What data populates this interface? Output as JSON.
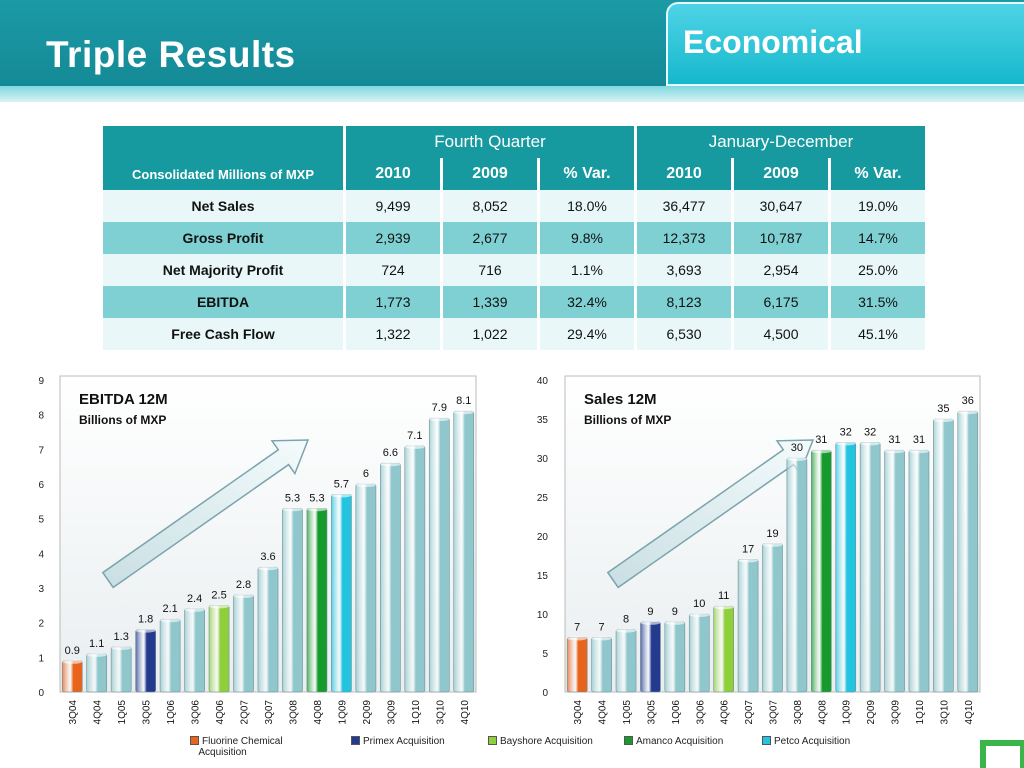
{
  "header": {
    "title": "Triple Results",
    "tab": "Economical"
  },
  "table": {
    "corner_label": "Consolidated Millions of MXP",
    "groups": [
      "Fourth Quarter",
      "January-December"
    ],
    "sub_headers": [
      "2010",
      "2009",
      "% Var.",
      "2010",
      "2009",
      "% Var."
    ],
    "rows": [
      {
        "label": "Net Sales",
        "values": [
          "9,499",
          "8,052",
          "18.0%",
          "36,477",
          "30,647",
          "19.0%"
        ]
      },
      {
        "label": "Gross Profit",
        "values": [
          "2,939",
          "2,677",
          "9.8%",
          "12,373",
          "10,787",
          "14.7%"
        ]
      },
      {
        "label": "Net Majority Profit",
        "values": [
          "724",
          "716",
          "1.1%",
          "3,693",
          "2,954",
          "25.0%"
        ]
      },
      {
        "label": "EBITDA",
        "values": [
          "1,773",
          "1,339",
          "32.4%",
          "8,123",
          "6,175",
          "31.5%"
        ]
      },
      {
        "label": "Free Cash Flow",
        "values": [
          "1,322",
          "1,022",
          "29.4%",
          "6,530",
          "4,500",
          "45.1%"
        ]
      }
    ]
  },
  "colors": {
    "default": "#8fc7cc",
    "fluorine": "#e8631c",
    "primex": "#233a8f",
    "bayshore": "#8fcf3c",
    "amanco": "#179a2c",
    "petco": "#22c4e0"
  },
  "legend": [
    {
      "key": "fluorine",
      "label_lines": [
        "Fluorine Chemical",
        "Acquisition"
      ]
    },
    {
      "key": "primex",
      "label_lines": [
        "Primex Acquisition"
      ]
    },
    {
      "key": "bayshore",
      "label_lines": [
        "Bayshore Acquisition"
      ]
    },
    {
      "key": "amanco",
      "label_lines": [
        "Amanco Acquisition"
      ]
    },
    {
      "key": "petco",
      "label_lines": [
        "Petco Acquisition"
      ]
    }
  ],
  "chart_data": [
    {
      "type": "bar",
      "title": "EBITDA 12M",
      "subtitle": "Billions of MXP",
      "categories": [
        "3Q04",
        "4Q04",
        "1Q05",
        "3Q05",
        "1Q06",
        "3Q06",
        "4Q06",
        "2Q07",
        "3Q07",
        "3Q08",
        "4Q08",
        "1Q09",
        "2Q09",
        "3Q09",
        "1Q10",
        "3Q10",
        "4Q10"
      ],
      "values": [
        0.9,
        1.1,
        1.3,
        1.8,
        2.1,
        2.4,
        2.5,
        2.8,
        3.6,
        5.3,
        5.3,
        5.7,
        6,
        6.6,
        7.1,
        7.9,
        8.1
      ],
      "value_labels": [
        "0.9",
        "1.1",
        "1.3",
        "1.8",
        "2.1",
        "2.4",
        "2.5",
        "2.8",
        "3.6",
        "5.3",
        "5.3",
        "5.7",
        "6",
        "6.6",
        "7.1",
        "7.9",
        "8.1"
      ],
      "highlight": {
        "0": "fluorine",
        "3": "primex",
        "6": "bayshore",
        "10": "amanco",
        "11": "petco"
      },
      "ylim": [
        0,
        9
      ],
      "yticks": [
        0,
        1,
        2,
        3,
        4,
        5,
        6,
        7,
        8,
        9
      ]
    },
    {
      "type": "bar",
      "title": "Sales 12M",
      "subtitle": "Billions of MXP",
      "categories": [
        "3Q04",
        "4Q04",
        "1Q05",
        "3Q05",
        "1Q06",
        "3Q06",
        "4Q06",
        "2Q07",
        "3Q07",
        "3Q08",
        "4Q08",
        "1Q09",
        "2Q09",
        "3Q09",
        "1Q10",
        "3Q10",
        "4Q10"
      ],
      "values": [
        7,
        7,
        8,
        9,
        9,
        10,
        11,
        17,
        19,
        30,
        31,
        32,
        32,
        31,
        31,
        35,
        36
      ],
      "value_labels": [
        "7",
        "7",
        "8",
        "9",
        "9",
        "10",
        "11",
        "17",
        "19",
        "30",
        "31",
        "32",
        "32",
        "31",
        "31",
        "35",
        "36"
      ],
      "highlight": {
        "0": "fluorine",
        "3": "primex",
        "6": "bayshore",
        "10": "amanco",
        "11": "petco"
      },
      "ylim": [
        0,
        40
      ],
      "yticks": [
        0,
        5,
        10,
        15,
        20,
        25,
        30,
        35,
        40
      ]
    }
  ]
}
